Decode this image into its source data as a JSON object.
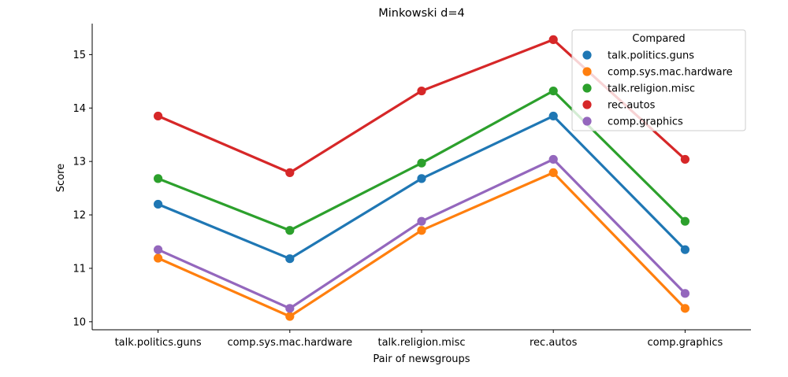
{
  "chart_data": {
    "type": "line",
    "title": "Minkowski d=4",
    "xlabel": "Pair of newsgroups",
    "ylabel": "Score",
    "categories": [
      "talk.politics.guns",
      "comp.sys.mac.hardware",
      "talk.religion.misc",
      "rec.autos",
      "comp.graphics"
    ],
    "ylim": [
      9.85,
      15.58
    ],
    "yticks": [
      10,
      11,
      12,
      13,
      14,
      15
    ],
    "grid": false,
    "legend": {
      "title": "Compared",
      "placement": "top-right"
    },
    "series": [
      {
        "name": "talk.politics.guns",
        "color": "#1f77b4",
        "values": [
          12.2,
          11.18,
          12.68,
          13.85,
          11.35
        ]
      },
      {
        "name": "comp.sys.mac.hardware",
        "color": "#ff7f0e",
        "values": [
          11.19,
          10.1,
          11.71,
          12.79,
          10.25
        ]
      },
      {
        "name": "talk.religion.misc",
        "color": "#2ca02c",
        "values": [
          12.68,
          11.71,
          12.97,
          14.32,
          11.88
        ]
      },
      {
        "name": "rec.autos",
        "color": "#d62728",
        "values": [
          13.85,
          12.79,
          14.32,
          15.28,
          13.04
        ]
      },
      {
        "name": "comp.graphics",
        "color": "#9467bd",
        "values": [
          11.35,
          10.25,
          11.88,
          13.04,
          10.53
        ]
      }
    ]
  }
}
